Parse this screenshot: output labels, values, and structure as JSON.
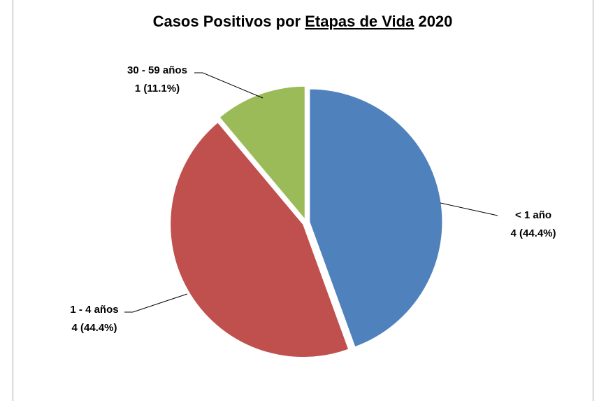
{
  "chart_data": {
    "type": "pie",
    "title": [
      "Casos Positivos por",
      "Etapas de Vida",
      "2020"
    ],
    "categories": [
      "< 1 año",
      "1 - 4 años",
      "30 - 59 años"
    ],
    "values": [
      4,
      4,
      1
    ],
    "value_labels": [
      "4 (44.4%)",
      "4 (44.4%)",
      "1 (11.1%)"
    ],
    "colors": [
      "#4f81bd",
      "#c0504d",
      "#9bbb59"
    ]
  }
}
